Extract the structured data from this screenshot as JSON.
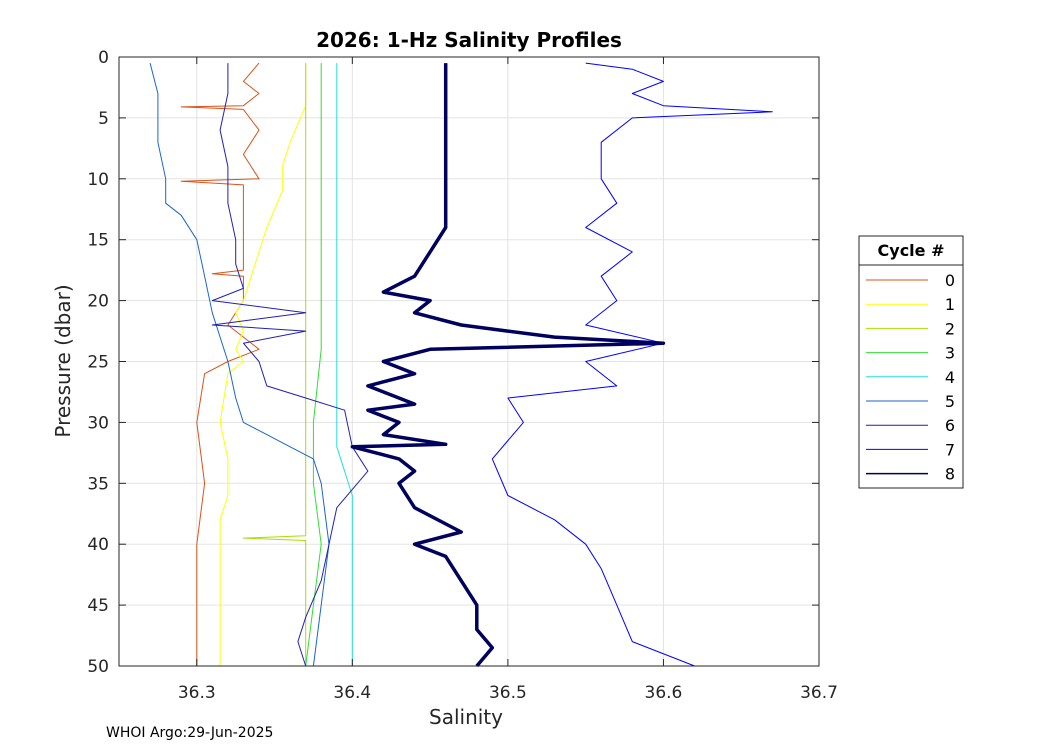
{
  "chart_data": {
    "type": "line",
    "title": "2026: 1-Hz Salinity Profiles",
    "xlabel": "Salinity",
    "ylabel": "Pressure (dbar)",
    "xlim": [
      36.25,
      36.7
    ],
    "ylim": [
      0,
      50
    ],
    "y_reversed": true,
    "xticks": [
      "36.3",
      "36.4",
      "36.5",
      "36.6",
      "36.7"
    ],
    "yticks": [
      "0",
      "5",
      "10",
      "15",
      "20",
      "25",
      "30",
      "35",
      "40",
      "45",
      "50"
    ],
    "grid": true,
    "legend": {
      "title": "Cycle #",
      "placement": "right"
    },
    "series": [
      {
        "name": "0",
        "color": "#d95319",
        "width": 1,
        "points": [
          [
            36.34,
            0.5
          ],
          [
            36.33,
            2
          ],
          [
            36.34,
            3
          ],
          [
            36.33,
            4
          ],
          [
            36.29,
            4.1
          ],
          [
            36.33,
            4.3
          ],
          [
            36.34,
            6
          ],
          [
            36.33,
            8
          ],
          [
            36.34,
            10
          ],
          [
            36.29,
            10.2
          ],
          [
            36.33,
            10.5
          ],
          [
            36.33,
            13
          ],
          [
            36.33,
            15
          ],
          [
            36.33,
            17.5
          ],
          [
            36.31,
            17.8
          ],
          [
            36.33,
            18
          ],
          [
            36.33,
            20
          ],
          [
            36.32,
            22
          ],
          [
            36.33,
            23
          ],
          [
            36.34,
            24
          ],
          [
            36.32,
            25
          ],
          [
            36.305,
            26
          ],
          [
            36.3,
            30
          ],
          [
            36.305,
            35
          ],
          [
            36.3,
            40
          ],
          [
            36.3,
            45
          ],
          [
            36.3,
            50
          ]
        ]
      },
      {
        "name": "1",
        "color": "#ffff00",
        "width": 1,
        "points": [
          [
            36.37,
            0.5
          ],
          [
            36.37,
            4
          ],
          [
            36.36,
            7
          ],
          [
            36.355,
            9
          ],
          [
            36.355,
            11
          ],
          [
            36.35,
            12.5
          ],
          [
            36.345,
            14
          ],
          [
            36.34,
            16
          ],
          [
            36.335,
            18
          ],
          [
            36.33,
            20
          ],
          [
            36.325,
            21
          ],
          [
            36.33,
            22.5
          ],
          [
            36.325,
            24
          ],
          [
            36.33,
            25
          ],
          [
            36.32,
            26
          ],
          [
            36.315,
            30
          ],
          [
            36.32,
            33
          ],
          [
            36.32,
            36
          ],
          [
            36.315,
            38
          ],
          [
            36.315,
            40
          ],
          [
            36.315,
            45
          ],
          [
            36.315,
            50
          ]
        ]
      },
      {
        "name": "2",
        "color": "#aadd00",
        "width": 1,
        "points": [
          [
            36.37,
            0.5
          ],
          [
            36.37,
            10
          ],
          [
            36.37,
            20
          ],
          [
            36.37,
            30
          ],
          [
            36.37,
            35
          ],
          [
            36.37,
            39.3
          ],
          [
            36.33,
            39.5
          ],
          [
            36.37,
            39.7
          ],
          [
            36.37,
            45
          ],
          [
            36.37,
            50
          ]
        ]
      },
      {
        "name": "3",
        "color": "#33dd33",
        "width": 1,
        "points": [
          [
            36.38,
            0.5
          ],
          [
            36.38,
            10
          ],
          [
            36.38,
            20
          ],
          [
            36.38,
            24
          ],
          [
            36.375,
            30
          ],
          [
            36.375,
            35
          ],
          [
            36.38,
            40
          ],
          [
            36.375,
            45
          ],
          [
            36.37,
            50
          ]
        ]
      },
      {
        "name": "4",
        "color": "#22dddd",
        "width": 1,
        "points": [
          [
            36.39,
            0.5
          ],
          [
            36.39,
            10
          ],
          [
            36.39,
            20
          ],
          [
            36.39,
            28
          ],
          [
            36.39,
            32
          ],
          [
            36.395,
            34
          ],
          [
            36.4,
            36
          ],
          [
            36.4,
            40
          ],
          [
            36.4,
            45
          ],
          [
            36.4,
            50
          ]
        ]
      },
      {
        "name": "5",
        "color": "#1a66c9",
        "width": 1,
        "points": [
          [
            36.27,
            0.5
          ],
          [
            36.275,
            3
          ],
          [
            36.275,
            7
          ],
          [
            36.28,
            10
          ],
          [
            36.28,
            12
          ],
          [
            36.29,
            13
          ],
          [
            36.3,
            15
          ],
          [
            36.305,
            18
          ],
          [
            36.31,
            21
          ],
          [
            36.315,
            23
          ],
          [
            36.32,
            25
          ],
          [
            36.325,
            28
          ],
          [
            36.33,
            30
          ],
          [
            36.345,
            31
          ],
          [
            36.36,
            32
          ],
          [
            36.375,
            33
          ],
          [
            36.38,
            35
          ],
          [
            36.385,
            40
          ],
          [
            36.38,
            45
          ],
          [
            36.375,
            50
          ]
        ]
      },
      {
        "name": "6",
        "color": "#1f1fb5",
        "width": 1,
        "points": [
          [
            36.32,
            0.5
          ],
          [
            36.32,
            3
          ],
          [
            36.315,
            6
          ],
          [
            36.32,
            9
          ],
          [
            36.32,
            12
          ],
          [
            36.325,
            15
          ],
          [
            36.325,
            17
          ],
          [
            36.33,
            19
          ],
          [
            36.31,
            20
          ],
          [
            36.37,
            21
          ],
          [
            36.31,
            22
          ],
          [
            36.37,
            22.5
          ],
          [
            36.33,
            23.5
          ],
          [
            36.34,
            25
          ],
          [
            36.345,
            27
          ],
          [
            36.37,
            28
          ],
          [
            36.395,
            29
          ],
          [
            36.4,
            32
          ],
          [
            36.41,
            34
          ],
          [
            36.39,
            37
          ],
          [
            36.385,
            40
          ],
          [
            36.38,
            43
          ],
          [
            36.37,
            46
          ],
          [
            36.365,
            48
          ],
          [
            36.37,
            50
          ]
        ]
      },
      {
        "name": "7",
        "color": "#0000ff",
        "width": 1,
        "points": [
          [
            36.55,
            0.5
          ],
          [
            36.58,
            1
          ],
          [
            36.6,
            2
          ],
          [
            36.58,
            3
          ],
          [
            36.6,
            4
          ],
          [
            36.67,
            4.5
          ],
          [
            36.58,
            5
          ],
          [
            36.56,
            7
          ],
          [
            36.56,
            10
          ],
          [
            36.57,
            12
          ],
          [
            36.55,
            14
          ],
          [
            36.58,
            16
          ],
          [
            36.56,
            18
          ],
          [
            36.57,
            20
          ],
          [
            36.55,
            22
          ],
          [
            36.6,
            23.5
          ],
          [
            36.55,
            25
          ],
          [
            36.57,
            27
          ],
          [
            36.5,
            28
          ],
          [
            36.51,
            30
          ],
          [
            36.49,
            33
          ],
          [
            36.5,
            36
          ],
          [
            36.53,
            38
          ],
          [
            36.55,
            40
          ],
          [
            36.56,
            42
          ],
          [
            36.57,
            45
          ],
          [
            36.58,
            48
          ],
          [
            36.61,
            49.5
          ],
          [
            36.62,
            50
          ]
        ]
      },
      {
        "name": "8",
        "color": "#00005f",
        "width": 3.5,
        "points": [
          [
            36.46,
            0.5
          ],
          [
            36.46,
            5
          ],
          [
            36.46,
            10
          ],
          [
            36.46,
            14
          ],
          [
            36.45,
            16
          ],
          [
            36.44,
            18
          ],
          [
            36.42,
            19.3
          ],
          [
            36.45,
            20
          ],
          [
            36.44,
            21
          ],
          [
            36.47,
            22
          ],
          [
            36.5,
            22.5
          ],
          [
            36.53,
            23
          ],
          [
            36.6,
            23.5
          ],
          [
            36.45,
            24
          ],
          [
            36.42,
            25
          ],
          [
            36.44,
            26
          ],
          [
            36.41,
            27
          ],
          [
            36.44,
            28.5
          ],
          [
            36.41,
            29
          ],
          [
            36.43,
            30
          ],
          [
            36.42,
            31
          ],
          [
            36.46,
            31.8
          ],
          [
            36.4,
            32
          ],
          [
            36.43,
            33
          ],
          [
            36.44,
            34
          ],
          [
            36.43,
            35
          ],
          [
            36.44,
            37
          ],
          [
            36.47,
            39
          ],
          [
            36.44,
            40
          ],
          [
            36.46,
            41
          ],
          [
            36.47,
            43
          ],
          [
            36.48,
            45
          ],
          [
            36.48,
            47
          ],
          [
            36.49,
            48.5
          ],
          [
            36.48,
            50
          ]
        ]
      }
    ]
  },
  "footer": {
    "note": "WHOI Argo:29-Jun-2025"
  }
}
